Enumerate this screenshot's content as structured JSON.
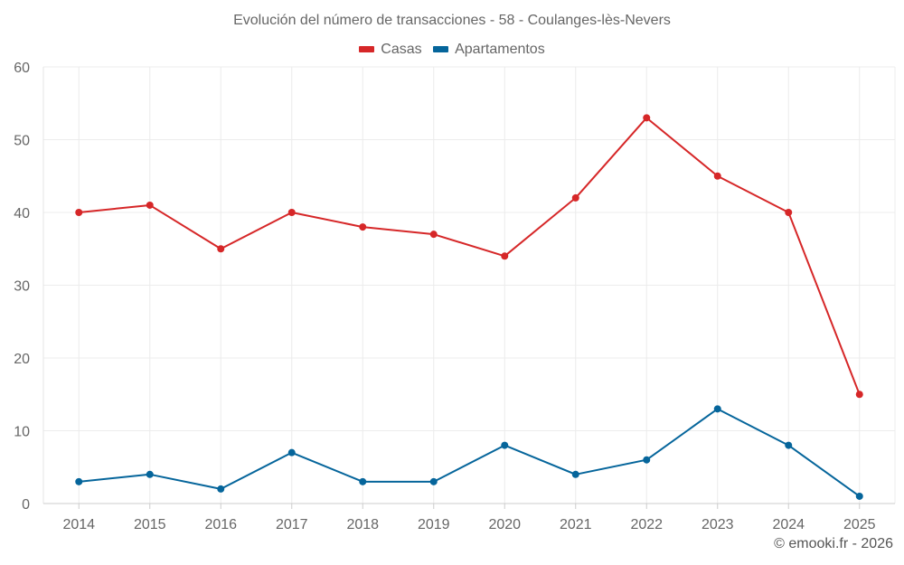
{
  "chart_data": {
    "type": "line",
    "title": "Evolución del número de transacciones - 58 - Coulanges-lès-Nevers",
    "categories": [
      "2014",
      "2015",
      "2016",
      "2017",
      "2018",
      "2019",
      "2020",
      "2021",
      "2022",
      "2023",
      "2024",
      "2025"
    ],
    "series": [
      {
        "name": "Casas",
        "color": "#d62728",
        "values": [
          40,
          41,
          35,
          40,
          38,
          37,
          34,
          42,
          53,
          45,
          40,
          15
        ]
      },
      {
        "name": "Apartamentos",
        "color": "#05659b",
        "values": [
          3,
          4,
          2,
          7,
          3,
          3,
          8,
          4,
          6,
          13,
          8,
          1
        ]
      }
    ],
    "ylim": [
      0,
      60
    ],
    "yticks": [
      "0",
      "10",
      "20",
      "30",
      "40",
      "50",
      "60"
    ],
    "xlabel": "",
    "ylabel": "",
    "grid": true,
    "legend_position": "top-center"
  },
  "footer": {
    "credit": "© emooki.fr - 2026"
  }
}
